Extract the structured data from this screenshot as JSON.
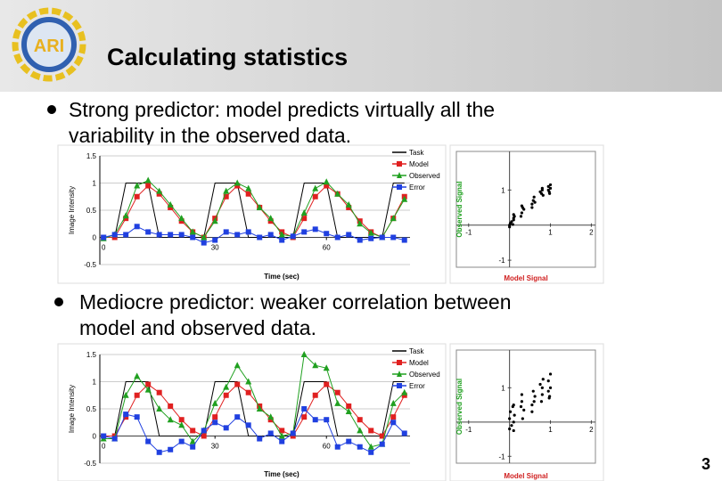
{
  "header": {
    "logo_text": "ARI",
    "title": "Calculating statistics"
  },
  "bullets": [
    {
      "lines": [
        "Strong predictor: model predicts virtually all the",
        "variability in the observed data."
      ]
    },
    {
      "lines": [
        "Mediocre predictor: weaker correlation between",
        "model and observed data."
      ]
    }
  ],
  "figures": [
    {
      "type": "line",
      "xlabel": "Time (sec)",
      "ylabel": "Image Intensity",
      "x": [
        0,
        3,
        6,
        9,
        12,
        15,
        18,
        21,
        24,
        27,
        30,
        33,
        36,
        39,
        42,
        45,
        48,
        51,
        54,
        57,
        60,
        63,
        66,
        69,
        72,
        75,
        78,
        81
      ],
      "xlim": [
        -1,
        82.5
      ],
      "xticks": [
        0,
        30,
        60
      ],
      "ylim": [
        -0.5,
        1.5
      ],
      "yticks": [
        1.5,
        1,
        0.5,
        0,
        -0.5
      ],
      "series": [
        {
          "name": "Task",
          "color": "#000000",
          "marker": "none",
          "values": [
            0,
            0,
            1,
            1,
            1,
            0,
            0,
            0,
            0,
            0,
            1,
            1,
            1,
            0,
            0,
            0,
            0,
            0,
            1,
            1,
            1,
            0,
            0,
            0,
            0,
            0,
            1,
            1
          ]
        },
        {
          "name": "Model",
          "color": "#e02020",
          "marker": "square",
          "values": [
            0,
            0,
            0.35,
            0.75,
            0.95,
            0.8,
            0.55,
            0.3,
            0.1,
            0,
            0.35,
            0.75,
            0.95,
            0.8,
            0.55,
            0.3,
            0.1,
            0,
            0.35,
            0.75,
            0.95,
            0.8,
            0.55,
            0.3,
            0.1,
            0,
            0.35,
            0.75
          ]
        },
        {
          "name": "Observed",
          "color": "#20a020",
          "marker": "triangle",
          "values": [
            -0.02,
            0.05,
            0.4,
            0.95,
            1.05,
            0.85,
            0.6,
            0.35,
            0.1,
            0,
            0.3,
            0.85,
            1,
            0.9,
            0.55,
            0.35,
            0.05,
            0.02,
            0.45,
            0.9,
            1.02,
            0.8,
            0.6,
            0.25,
            0.08,
            0,
            0.35,
            0.7
          ]
        },
        {
          "name": "Error",
          "color": "#2040e0",
          "marker": "square",
          "values": [
            0,
            0.05,
            0.05,
            0.2,
            0.1,
            0.05,
            0.05,
            0.05,
            0,
            -0.1,
            -0.05,
            0.1,
            0.05,
            0.1,
            0,
            0.05,
            -0.05,
            0.02,
            0.1,
            0.15,
            0.07,
            0,
            0.05,
            -0.05,
            -0.02,
            0,
            0,
            -0.05
          ]
        }
      ]
    },
    {
      "type": "scatter",
      "xlabel": "Model Signal",
      "ylabel": "Observed Signal",
      "color": "#000000",
      "xlim": [
        -1.3,
        2.1
      ],
      "xticks": [
        -1,
        1,
        2
      ],
      "ylim": [
        -1.2,
        2.1
      ],
      "yticks": [
        1,
        -1
      ],
      "x": [
        0,
        0,
        0.02,
        0.05,
        0.08,
        0.1,
        0.1,
        0.12,
        0.3,
        0.32,
        0.35,
        0.3,
        0.28,
        0.55,
        0.58,
        0.6,
        0.62,
        0.75,
        0.78,
        0.8,
        0.82,
        0.95,
        0.95,
        0.97,
        1,
        1,
        0.98,
        0.55,
        0.8,
        0.1
      ],
      "y": [
        0,
        -0.05,
        0.05,
        0.1,
        0.02,
        0.2,
        0.3,
        0.25,
        0.35,
        0.5,
        0.45,
        0.55,
        0.25,
        0.6,
        0.7,
        0.8,
        0.65,
        0.95,
        0.9,
        1.05,
        0.85,
        1.0,
        1.1,
        0.95,
        1.05,
        1.15,
        0.9,
        0.5,
        1.0,
        0.15
      ]
    },
    {
      "type": "line",
      "xlabel": "Time (sec)",
      "ylabel": "Image Intensity",
      "x": [
        0,
        3,
        6,
        9,
        12,
        15,
        18,
        21,
        24,
        27,
        30,
        33,
        36,
        39,
        42,
        45,
        48,
        51,
        54,
        57,
        60,
        63,
        66,
        69,
        72,
        75,
        78,
        81
      ],
      "xlim": [
        -1,
        82.5
      ],
      "xticks": [
        0,
        30,
        60
      ],
      "ylim": [
        -0.5,
        1.5
      ],
      "yticks": [
        1.5,
        1,
        0.5,
        0,
        -0.5
      ],
      "series": [
        {
          "name": "Task",
          "color": "#000000",
          "marker": "none",
          "values": [
            0,
            0,
            1,
            1,
            1,
            0,
            0,
            0,
            0,
            0,
            1,
            1,
            1,
            0,
            0,
            0,
            0,
            0,
            1,
            1,
            1,
            0,
            0,
            0,
            0,
            0,
            1,
            1
          ]
        },
        {
          "name": "Model",
          "color": "#e02020",
          "marker": "square",
          "values": [
            0,
            0,
            0.35,
            0.75,
            0.95,
            0.8,
            0.55,
            0.3,
            0.1,
            0,
            0.35,
            0.75,
            0.95,
            0.8,
            0.55,
            0.3,
            0.1,
            0,
            0.35,
            0.75,
            0.95,
            0.8,
            0.55,
            0.3,
            0.1,
            0,
            0.35,
            0.75
          ]
        },
        {
          "name": "Observed",
          "color": "#20a020",
          "marker": "triangle",
          "values": [
            -0.05,
            -0.05,
            0.75,
            1.1,
            0.85,
            0.5,
            0.3,
            0.2,
            -0.1,
            0.1,
            0.6,
            0.9,
            1.3,
            1.0,
            0.5,
            0.35,
            0,
            0.05,
            1.5,
            1.3,
            1.25,
            0.6,
            0.45,
            0.1,
            -0.2,
            -0.15,
            0.6,
            0.8
          ]
        },
        {
          "name": "Error",
          "color": "#2040e0",
          "marker": "square",
          "values": [
            0,
            -0.05,
            0.4,
            0.35,
            -0.1,
            -0.3,
            -0.25,
            -0.1,
            -0.2,
            0.1,
            0.25,
            0.15,
            0.35,
            0.2,
            -0.05,
            0.05,
            -0.1,
            0.05,
            0.5,
            0.3,
            0.3,
            -0.2,
            -0.1,
            -0.2,
            -0.3,
            -0.15,
            0.25,
            0.05
          ]
        }
      ]
    },
    {
      "type": "scatter",
      "xlabel": "Model Signal",
      "ylabel": "Observed Signal",
      "color": "#000000",
      "xlim": [
        -1.3,
        2.1
      ],
      "xticks": [
        -1,
        1,
        2
      ],
      "ylim": [
        -1.2,
        2.1
      ],
      "yticks": [
        1,
        -1
      ],
      "x": [
        0,
        0,
        0.02,
        0.05,
        0.08,
        0.1,
        0.1,
        0.12,
        0.3,
        0.32,
        0.35,
        0.3,
        0.28,
        0.55,
        0.58,
        0.6,
        0.62,
        0.75,
        0.78,
        0.8,
        0.82,
        0.95,
        0.95,
        0.97,
        1,
        1,
        0.98,
        0.55,
        0.8,
        0.1
      ],
      "y": [
        -0.2,
        0.1,
        0.3,
        -0.1,
        0.45,
        0.0,
        0.5,
        0.2,
        0.6,
        0.1,
        0.35,
        0.8,
        0.45,
        0.3,
        0.9,
        0.6,
        0.75,
        1.1,
        0.6,
        0.8,
        1.25,
        0.9,
        1.2,
        0.7,
        1.4,
        1.0,
        0.75,
        0.5,
        1.0,
        -0.25
      ]
    }
  ],
  "page_number": "3"
}
